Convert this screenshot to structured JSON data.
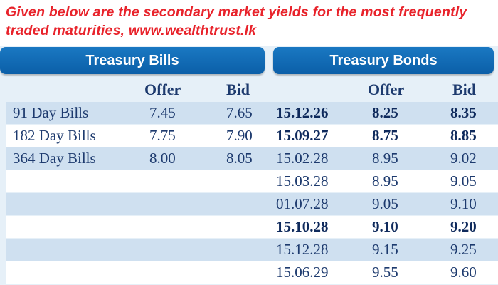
{
  "caption": {
    "line1": "Given below are the secondary market yields for the most frequently",
    "line2": "traded maturities, www.wealthtrust.lk"
  },
  "headers": {
    "bills": "Treasury Bills",
    "bonds": "Treasury Bonds"
  },
  "column_heads": {
    "bills_offer": "Offer",
    "bills_bid": "Bid",
    "bonds_offer": "Offer",
    "bonds_bid": "Bid"
  },
  "bills": [
    {
      "name": "91 Day Bills",
      "offer": "7.45",
      "bid": "7.65"
    },
    {
      "name": "182 Day Bills",
      "offer": "7.75",
      "bid": "7.90"
    },
    {
      "name": "364 Day Bills",
      "offer": "8.00",
      "bid": "8.05"
    }
  ],
  "bonds": [
    {
      "maturity": "15.12.26",
      "offer": "8.25",
      "bid": "8.35",
      "bold": true
    },
    {
      "maturity": "15.09.27",
      "offer": "8.75",
      "bid": "8.85",
      "bold": true
    },
    {
      "maturity": "15.02.28",
      "offer": "8.95",
      "bid": "9.02",
      "bold": false
    },
    {
      "maturity": "15.03.28",
      "offer": "8.95",
      "bid": "9.05",
      "bold": false
    },
    {
      "maturity": "01.07.28",
      "offer": "9.05",
      "bid": "9.10",
      "bold": false
    },
    {
      "maturity": "15.10.28",
      "offer": "9.10",
      "bid": "9.20",
      "bold": true
    },
    {
      "maturity": "15.12.28",
      "offer": "9.15",
      "bid": "9.25",
      "bold": false
    },
    {
      "maturity": "15.06.29",
      "offer": "9.55",
      "bid": "9.60",
      "bold": false
    }
  ],
  "colors": {
    "caption": "#e8232b",
    "header": "#0b5fa8",
    "row_shade": "#cfe0f0",
    "text": "#1d3a6e"
  }
}
